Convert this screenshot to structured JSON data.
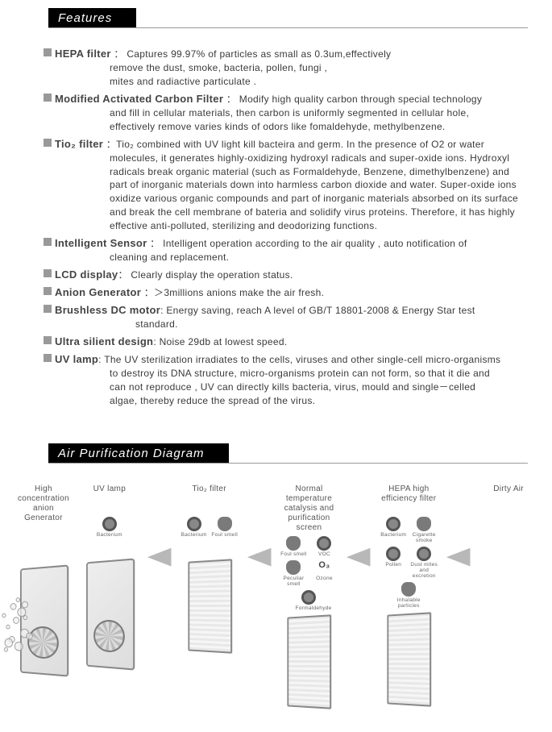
{
  "sections": {
    "features_title": "Features",
    "diagram_title": "Air Purification Diagram"
  },
  "features": [
    {
      "title": "HEPA filter",
      "sep": " ： ",
      "desc": "Captures 99.97% of particles as small as 0.3um,effectively",
      "cont": [
        "remove the dust, smoke, bacteria,  pollen,  fungi ,",
        "mites and radiactive particulate ."
      ],
      "cont_indent": 68
    },
    {
      "title": "Modified  Activated  Carbon Filter",
      "sep": " ： ",
      "desc": "Modify high quality carbon through special technology",
      "cont": [
        "and fill in cellular materials, then carbon is  uniformly segmented in cellular hole,",
        "effectively remove varies kinds of odors like  fomaldehyde, methylbenzene."
      ],
      "cont_indent": 68
    },
    {
      "title": "Tio₂ filter",
      "sep": " ：",
      "desc": "Tio₂ combined with UV light kill bacteira and germ. In the presence of O2 or water",
      "cont": [
        "molecules, it generates highly-oxidizing hydroxyl radicals and super-oxide ions. Hydroxyl",
        "radicals break organic material (such as Formaldehyde, Benzene, dimethylbenzene) and",
        "part of inorganic materials down into harmless carbon dioxide and water. Super-oxide ions",
        "oxidize various organic  compounds and part of inorganic materials absorbed on its surface",
        "and break the cell  membrane of bateria and solidify virus proteins. Therefore, it has highly",
        "effective anti-polluted, sterilizing and deodorizing functions."
      ],
      "cont_indent": 68
    },
    {
      "title": "Intelligent Sensor",
      "sep": " ： ",
      "desc": "Intelligent operation according to the air quality ,  auto notification of",
      "cont": [
        "cleaning and replacement."
      ],
      "cont_indent": 68
    },
    {
      "title": "LCD display",
      "sep": "：",
      "desc": " Clearly display the operation status.",
      "cont": [],
      "cont_indent": 0
    },
    {
      "title": "Anion Generator",
      "sep": " ：",
      "desc": "＞3millions anions make the air fresh.",
      "cont": [],
      "cont_indent": 0
    },
    {
      "title": "Brushless DC motor",
      "sep": ": ",
      "desc": "Energy saving, reach A level of GB/T 18801-2008 & Energy Star test",
      "cont": [
        "standard."
      ],
      "cont_indent": 100
    },
    {
      "title": "Ultra silient design",
      "sep": ": ",
      "desc": "Noise 29db at lowest speed.",
      "cont": [],
      "cont_indent": 0
    },
    {
      "title": "UV lamp",
      "sep": ": ",
      "desc": "The UV sterilization irradiates  to the cells, viruses and other single-cell micro-organisms",
      "cont": [
        "to destroy its DNA structure, micro-organisms protein can not form, so that it die and",
        "can not reproduce , UV can directly kills bacteria,  virus,  mould and single－celled",
        "algae,  thereby reduce the spread of the virus."
      ],
      "cont_indent": 68
    }
  ],
  "diagram": {
    "stages": [
      {
        "title": "High concentration anion Generator",
        "visual": "anion-device",
        "icons": []
      },
      {
        "title": "UV lamp",
        "visual": "device",
        "icons": [
          {
            "label": "Bacterium",
            "type": "bug"
          }
        ]
      },
      {
        "title": "Tio₂ filter",
        "visual": "filter",
        "icons": [
          {
            "label": "Bacterium",
            "type": "bug"
          },
          {
            "label": "Foul smell",
            "type": "cloud"
          }
        ]
      },
      {
        "title": "Normal temperature catalysis and purification screen",
        "visual": "filter",
        "icons": [
          {
            "label": "Foul smell",
            "type": "cloud"
          },
          {
            "label": "VOC",
            "type": "bug"
          },
          {
            "label": "Peculiar smell",
            "type": "cloud"
          },
          {
            "label": "Ozone",
            "type": "o3"
          },
          {
            "label": "Formaldehyde",
            "type": "bug"
          }
        ]
      },
      {
        "title": "HEPA  high efficiency filter",
        "visual": "filter",
        "icons": [
          {
            "label": "Bacterium",
            "type": "bug"
          },
          {
            "label": "Cigarette smoke",
            "type": "cloud"
          },
          {
            "label": "Pollen",
            "type": "bug"
          },
          {
            "label": "Dust mites and excretion",
            "type": "bug"
          },
          {
            "label": "Inhalable particles",
            "type": "cloud"
          }
        ]
      },
      {
        "title": "Dirty Air",
        "visual": "none",
        "icons": []
      }
    ]
  },
  "colors": {
    "header_bg": "#000000",
    "header_fg": "#ffffff",
    "bullet": "#999999",
    "text": "#3a3a3a",
    "arrow": "#b8b8b8"
  }
}
